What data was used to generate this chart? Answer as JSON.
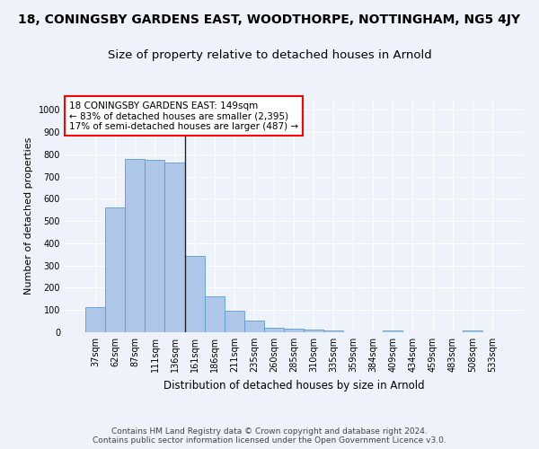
{
  "suptitle": "18, CONINGSBY GARDENS EAST, WOODTHORPE, NOTTINGHAM, NG5 4JY",
  "title": "Size of property relative to detached houses in Arnold",
  "xlabel": "Distribution of detached houses by size in Arnold",
  "ylabel": "Number of detached properties",
  "categories": [
    "37sqm",
    "62sqm",
    "87sqm",
    "111sqm",
    "136sqm",
    "161sqm",
    "186sqm",
    "211sqm",
    "235sqm",
    "260sqm",
    "285sqm",
    "310sqm",
    "335sqm",
    "359sqm",
    "384sqm",
    "409sqm",
    "434sqm",
    "459sqm",
    "483sqm",
    "508sqm",
    "533sqm"
  ],
  "values": [
    113,
    560,
    780,
    775,
    765,
    345,
    163,
    98,
    53,
    20,
    15,
    13,
    8,
    0,
    0,
    10,
    0,
    0,
    0,
    10,
    0
  ],
  "bar_color": "#aec6e8",
  "bar_edge_color": "#5b9bd5",
  "highlight_index": 4,
  "highlight_line_color": "#222222",
  "annotation_text": "18 CONINGSBY GARDENS EAST: 149sqm\n← 83% of detached houses are smaller (2,395)\n17% of semi-detached houses are larger (487) →",
  "annotation_box_color": "white",
  "annotation_box_edge_color": "red",
  "ylim": [
    0,
    1050
  ],
  "yticks": [
    0,
    100,
    200,
    300,
    400,
    500,
    600,
    700,
    800,
    900,
    1000
  ],
  "background_color": "#eef2fa",
  "grid_color": "white",
  "footer": "Contains HM Land Registry data © Crown copyright and database right 2024.\nContains public sector information licensed under the Open Government Licence v3.0.",
  "suptitle_fontsize": 10,
  "title_fontsize": 9.5,
  "xlabel_fontsize": 8.5,
  "ylabel_fontsize": 8,
  "tick_fontsize": 7,
  "annotation_fontsize": 7.5,
  "footer_fontsize": 6.5
}
